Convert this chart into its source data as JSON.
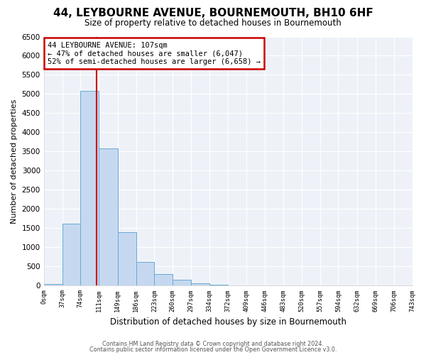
{
  "title": "44, LEYBOURNE AVENUE, BOURNEMOUTH, BH10 6HF",
  "subtitle": "Size of property relative to detached houses in Bournemouth",
  "xlabel": "Distribution of detached houses by size in Bournemouth",
  "ylabel": "Number of detached properties",
  "bar_color": "#c5d8f0",
  "bar_edge_color": "#6aaad4",
  "bin_edges": [
    0,
    37,
    74,
    111,
    149,
    186,
    223,
    260,
    297,
    334,
    372,
    409,
    446,
    483,
    520,
    557,
    594,
    632,
    669,
    706,
    743
  ],
  "bar_heights": [
    50,
    1620,
    5080,
    3580,
    1400,
    610,
    300,
    150,
    70,
    20,
    5,
    2,
    0,
    0,
    0,
    0,
    0,
    0,
    0,
    0
  ],
  "property_size": 107,
  "vline_color": "#cc0000",
  "annotation_line1": "44 LEYBOURNE AVENUE: 107sqm",
  "annotation_line2": "← 47% of detached houses are smaller (6,047)",
  "annotation_line3": "52% of semi-detached houses are larger (6,658) →",
  "annotation_box_edge": "#cc0000",
  "tick_labels": [
    "0sqm",
    "37sqm",
    "74sqm",
    "111sqm",
    "149sqm",
    "186sqm",
    "223sqm",
    "260sqm",
    "297sqm",
    "334sqm",
    "372sqm",
    "409sqm",
    "446sqm",
    "483sqm",
    "520sqm",
    "557sqm",
    "594sqm",
    "632sqm",
    "669sqm",
    "706sqm",
    "743sqm"
  ],
  "ylim": [
    0,
    6500
  ],
  "yticks": [
    0,
    500,
    1000,
    1500,
    2000,
    2500,
    3000,
    3500,
    4000,
    4500,
    5000,
    5500,
    6000,
    6500
  ],
  "footer_line1": "Contains HM Land Registry data © Crown copyright and database right 2024.",
  "footer_line2": "Contains public sector information licensed under the Open Government Licence v3.0.",
  "bg_color": "#ffffff",
  "plot_bg_color": "#eef2f8",
  "grid_color": "#ffffff"
}
